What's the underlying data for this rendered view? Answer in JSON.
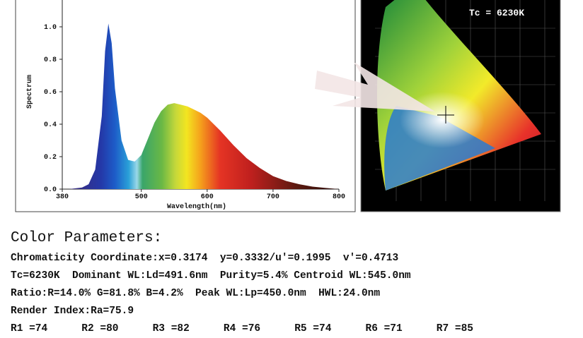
{
  "chart_data": {
    "type": "area",
    "xlabel": "Wavelength(nm)",
    "ylabel": "Spectrum",
    "x": [
      380,
      390,
      400,
      410,
      420,
      430,
      440,
      445,
      450,
      455,
      460,
      470,
      480,
      490,
      500,
      510,
      520,
      530,
      540,
      550,
      560,
      570,
      580,
      590,
      600,
      620,
      640,
      660,
      680,
      700,
      720,
      740,
      760,
      780,
      800
    ],
    "values": [
      0,
      0,
      0.005,
      0.01,
      0.03,
      0.12,
      0.45,
      0.85,
      1.02,
      0.9,
      0.62,
      0.3,
      0.18,
      0.17,
      0.21,
      0.31,
      0.41,
      0.48,
      0.52,
      0.53,
      0.52,
      0.51,
      0.49,
      0.47,
      0.44,
      0.36,
      0.27,
      0.19,
      0.13,
      0.08,
      0.05,
      0.03,
      0.015,
      0.007,
      0
    ],
    "xlim": [
      380,
      800
    ],
    "xticks": [
      380,
      500,
      600,
      700,
      800
    ],
    "ylim": [
      0,
      1.15
    ],
    "yticks": [
      {
        "value": 0,
        "label": "0.0"
      },
      0.2,
      0.4,
      0.6,
      0.8,
      {
        "value": 1,
        "label": "1.0"
      }
    ]
  },
  "cie": {
    "tc": "Tc = 6230K"
  },
  "parameters": {
    "title": "Color Parameters:",
    "lines": [
      "Chromaticity Coordinate:x=0.3174  y=0.3332/u'=0.1995  v'=0.4713",
      "Tc=6230K  Dominant WL:Ld=491.6nm  Purity=5.4% Centroid WL:545.0nm",
      "Ratio:R=14.0% G=81.8% B=4.2%  Peak WL:Lp=450.0nm  HWL:24.0nm",
      "Render Index:Ra=75.9"
    ],
    "render_indices": [
      "R1 =74",
      "R2 =80",
      "R3 =82",
      "R4 =76",
      "R5 =74",
      "R6 =71",
      "R7 =85"
    ]
  }
}
